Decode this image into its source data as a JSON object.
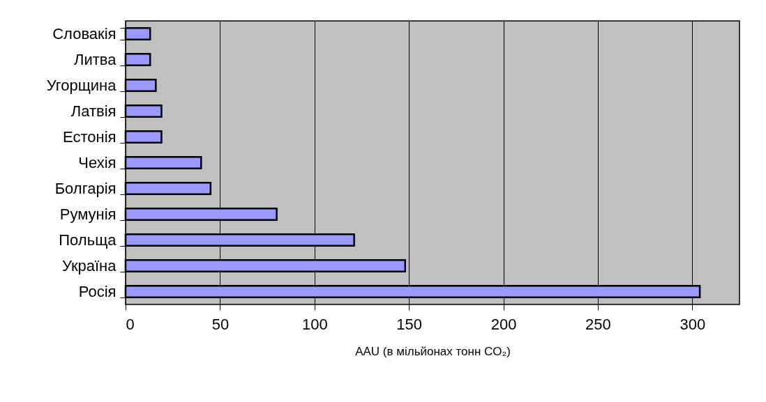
{
  "chart_data": {
    "type": "bar",
    "orientation": "horizontal",
    "xlabel": "AAU (в мільйонах тонн CO₂)",
    "categories": [
      "Словакія",
      "Литва",
      "Угорщина",
      "Латвія",
      "Естонія",
      "Чехія",
      "Болгарія",
      "Румунія",
      "Польща",
      "Україна",
      "Росія"
    ],
    "values": [
      13,
      13,
      16,
      19,
      19,
      40,
      45,
      80,
      121,
      148,
      304
    ],
    "color": "#9999ff",
    "xlim": [
      0,
      325
    ],
    "xticks": [
      0,
      50,
      100,
      150,
      200,
      250,
      300
    ],
    "grid": "x"
  }
}
